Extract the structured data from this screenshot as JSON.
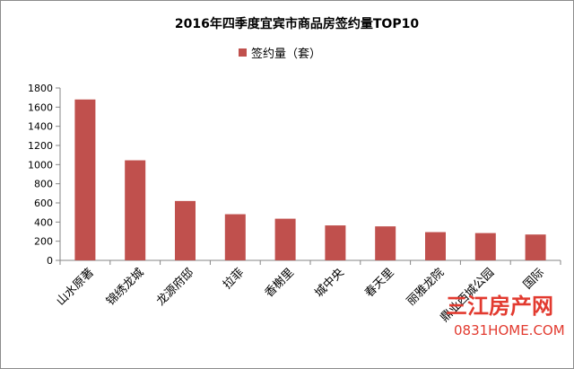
{
  "chart_data": {
    "type": "bar",
    "title": "2016年四季度宜宾市商品房签约量TOP10",
    "legend": [
      "签约量（套）"
    ],
    "legend_position": "top",
    "categories": [
      "山水原著",
      "锦绣龙城",
      "龙源府邸",
      "拉菲",
      "香榭里",
      "城中央",
      "春天里",
      "丽雅龙院",
      "鼎业西城公园",
      "国际"
    ],
    "series": [
      {
        "name": "签约量（套）",
        "values": [
          1680,
          1045,
          620,
          482,
          435,
          365,
          355,
          295,
          285,
          270
        ]
      }
    ],
    "ylim": [
      0,
      1800
    ],
    "yticks": [
      0,
      200,
      400,
      600,
      800,
      1000,
      1200,
      1400,
      1600,
      1800
    ],
    "grid": false,
    "colors": {
      "bar": "#c0504d",
      "axis": "#868686"
    }
  },
  "watermark": {
    "brand": "三江房产网",
    "url": "0831HOME.COM"
  }
}
